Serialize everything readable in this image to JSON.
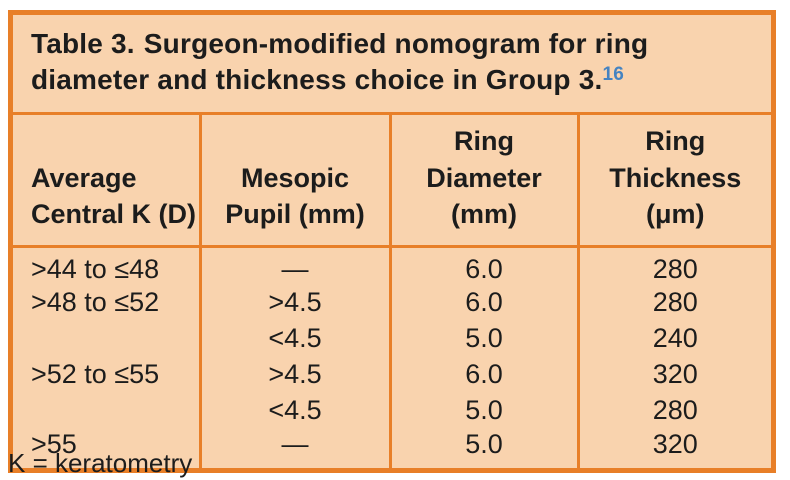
{
  "title": {
    "prefix": "Table 3.",
    "text": "Surgeon-modified nomogram for ring diameter and thickness choice in Group 3.",
    "citation": "16"
  },
  "columns": [
    [
      "Average",
      "Central K (D)"
    ],
    [
      "Mesopic",
      "Pupil (mm)"
    ],
    [
      "Ring",
      "Diameter",
      "(mm)"
    ],
    [
      "Ring",
      "Thickness",
      "(μm)"
    ]
  ],
  "rows": [
    [
      ">44 to ≤48",
      "—",
      "6.0",
      "280"
    ],
    [
      ">48 to ≤52",
      ">4.5",
      "6.0",
      "280"
    ],
    [
      "",
      "<4.5",
      "5.0",
      "240"
    ],
    [
      ">52 to ≤55",
      ">4.5",
      "6.0",
      "320"
    ],
    [
      "",
      "<4.5",
      "5.0",
      "280"
    ],
    [
      ">55",
      "—",
      "5.0",
      "320"
    ]
  ],
  "footnote": "K = keratometry",
  "colors": {
    "accent_orange": "#e87f28",
    "background_peach": "#f9d3ae",
    "citation_blue": "#4583c1",
    "text": "#1c1c1c",
    "page_background": "#ffffff"
  }
}
